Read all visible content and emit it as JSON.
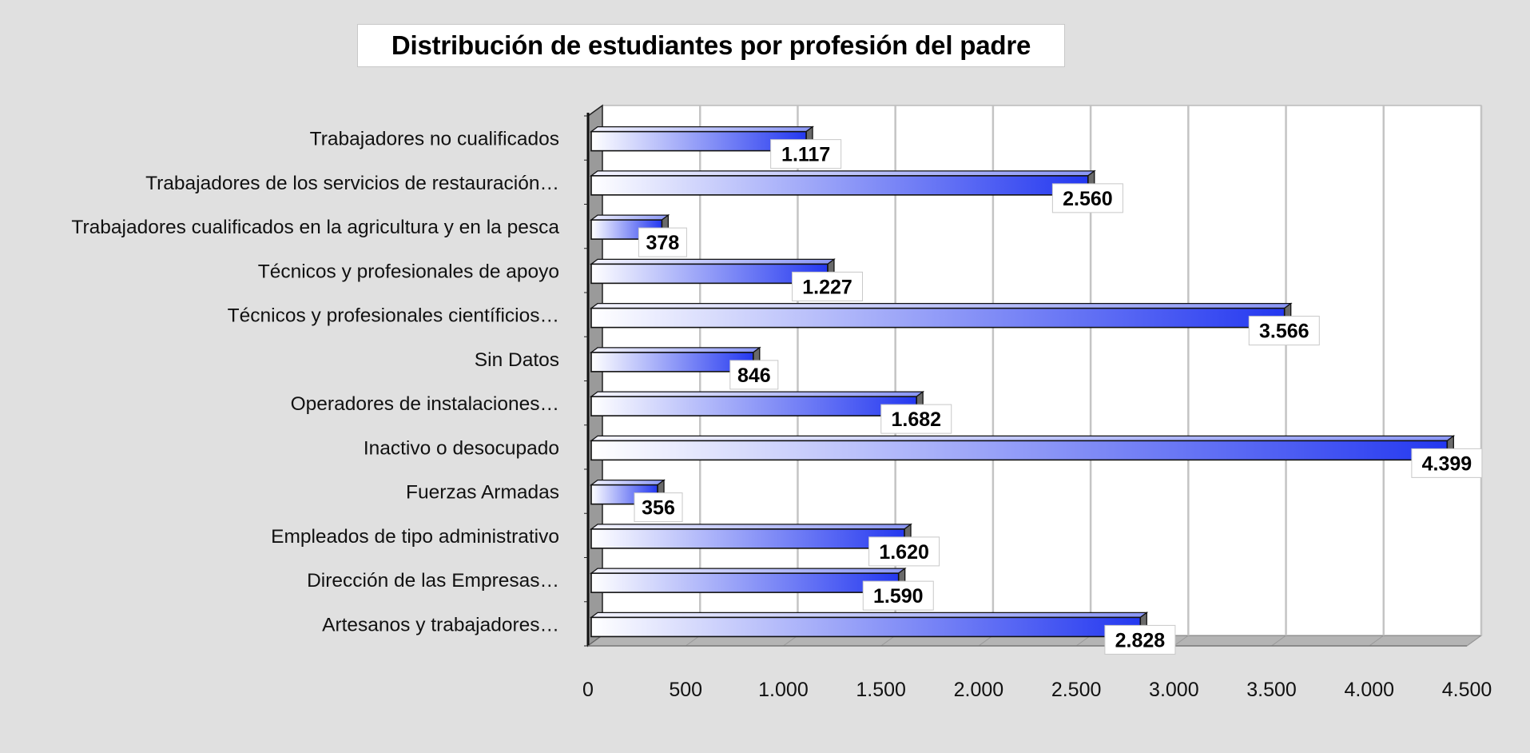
{
  "chart_data": {
    "type": "bar",
    "orientation": "horizontal",
    "style": "3d",
    "title": "Distribución de estudiantes por profesión del padre",
    "categories": [
      "Trabajadores no cualificados",
      "Trabajadores de los servicios de restauración…",
      "Trabajadores cualificados en la agricultura y en la pesca",
      "Técnicos y profesionales de apoyo",
      "Técnicos y profesionales científicios…",
      "Sin Datos",
      "Operadores de instalaciones…",
      "Inactivo o desocupado",
      "Fuerzas Armadas",
      "Empleados de tipo administrativo",
      "Dirección de las Empresas…",
      "Artesanos y trabajadores…"
    ],
    "values": [
      1117,
      2560,
      378,
      1227,
      3566,
      846,
      1682,
      4399,
      356,
      1620,
      1590,
      2828
    ],
    "value_labels": [
      "1.117",
      "2.560",
      "378",
      "1.227",
      "3.566",
      "846",
      "1.682",
      "4.399",
      "356",
      "1.620",
      "1.590",
      "2.828"
    ],
    "xlim": [
      0,
      4500
    ],
    "x_ticks": [
      0,
      500,
      1000,
      1500,
      2000,
      2500,
      3000,
      3500,
      4000,
      4500
    ],
    "x_tick_labels": [
      "0",
      "500",
      "1.000",
      "1.500",
      "2.000",
      "2.500",
      "3.000",
      "3.500",
      "4.000",
      "4.500"
    ],
    "xlabel": "",
    "ylabel": "",
    "grid": "vertical",
    "legend": "none",
    "colors": {
      "bar_start": "#ffffff",
      "bar_end": "#2438f0",
      "plot_bg": "#ffffff",
      "page_bg": "#e0e0e0",
      "gridline": "#c4c4c4",
      "wall": "#9a9a9a"
    }
  }
}
